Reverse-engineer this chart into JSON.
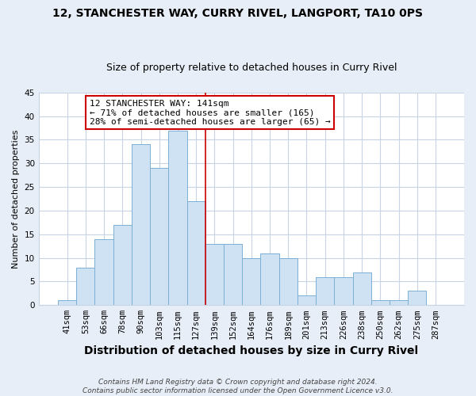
{
  "title": "12, STANCHESTER WAY, CURRY RIVEL, LANGPORT, TA10 0PS",
  "subtitle": "Size of property relative to detached houses in Curry Rivel",
  "xlabel": "Distribution of detached houses by size in Curry Rivel",
  "ylabel": "Number of detached properties",
  "bar_color": "#cfe2f3",
  "bar_edge_color": "#7bafd4",
  "categories": [
    "41sqm",
    "53sqm",
    "66sqm",
    "78sqm",
    "90sqm",
    "103sqm",
    "115sqm",
    "127sqm",
    "139sqm",
    "152sqm",
    "164sqm",
    "176sqm",
    "189sqm",
    "201sqm",
    "213sqm",
    "226sqm",
    "238sqm",
    "250sqm",
    "262sqm",
    "275sqm",
    "287sqm"
  ],
  "values": [
    1,
    8,
    14,
    17,
    34,
    29,
    37,
    22,
    13,
    13,
    10,
    11,
    10,
    2,
    6,
    6,
    7,
    1,
    1,
    3,
    0
  ],
  "vline_index": 8,
  "vline_color": "#cc0000",
  "annotation_line1": "12 STANCHESTER WAY: 141sqm",
  "annotation_line2": "← 71% of detached houses are smaller (165)",
  "annotation_line3": "28% of semi-detached houses are larger (65) →",
  "annotation_box_color": "white",
  "annotation_box_edge_color": "#cc0000",
  "ylim": [
    0,
    45
  ],
  "yticks": [
    0,
    5,
    10,
    15,
    20,
    25,
    30,
    35,
    40,
    45
  ],
  "footnote_line1": "Contains HM Land Registry data © Crown copyright and database right 2024.",
  "footnote_line2": "Contains public sector information licensed under the Open Government Licence v3.0.",
  "outer_bg_color": "#e8eef7",
  "plot_bg_color": "#ffffff",
  "grid_color": "#c8d4e4",
  "title_fontsize": 10,
  "subtitle_fontsize": 9,
  "xlabel_fontsize": 10,
  "ylabel_fontsize": 8,
  "tick_fontsize": 7.5,
  "footnote_fontsize": 6.5
}
